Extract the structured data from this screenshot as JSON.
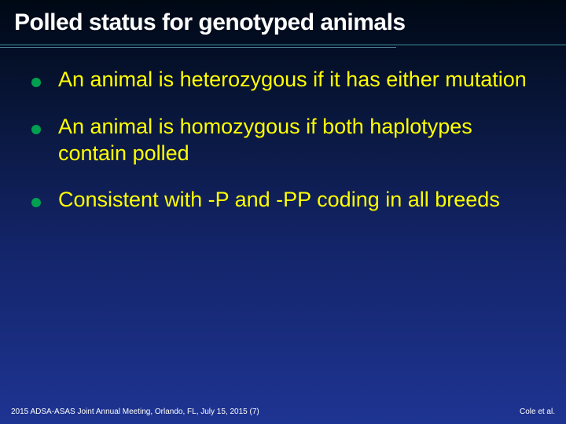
{
  "slide": {
    "title": "Polled status for genotyped animals",
    "title_color": "#ffffff",
    "title_fontsize": 30,
    "divider_colors": [
      "#1d4a5c",
      "#4a7a8c"
    ],
    "background_gradient": [
      "#000814",
      "#0a1840",
      "#14256b",
      "#1e3492"
    ],
    "bullets": [
      {
        "text": "An animal is heterozygous if it has either mutation"
      },
      {
        "text": "An animal is homozygous if both haplotypes contain polled"
      },
      {
        "text": "Consistent with -P and -PP coding in all breeds"
      }
    ],
    "bullet_color": "#ffff00",
    "bullet_fontsize": 27,
    "bullet_marker_color": "#00a050",
    "footer_left": "2015 ADSA-ASAS Joint Annual Meeting, Orlando, FL, July 15, 2015 (7)",
    "footer_right": "Cole et al.",
    "footer_color": "#ffffff",
    "footer_fontsize": 10
  }
}
